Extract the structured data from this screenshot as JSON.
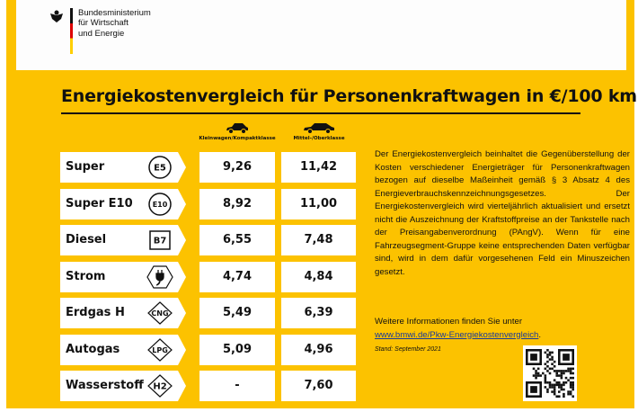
{
  "header": {
    "ministry_lines": [
      "Bundesministerium",
      "für Wirtschaft",
      "und Energie"
    ]
  },
  "title": "Energiekostenvergleich für Personenkraftwagen in €/100 km",
  "columns": [
    "Kleinwagen/Kompaktklasse",
    "Mittel-/Oberklasse"
  ],
  "rows": [
    {
      "fuel": "Super",
      "badge": "E5",
      "badge_shape": "circle",
      "small": "9,26",
      "large": "11,42"
    },
    {
      "fuel": "Super E10",
      "badge": "E10",
      "badge_shape": "circle",
      "small": "8,92",
      "large": "11,00"
    },
    {
      "fuel": "Diesel",
      "badge": "B7",
      "badge_shape": "square",
      "small": "6,55",
      "large": "7,48"
    },
    {
      "fuel": "Strom",
      "badge": "",
      "badge_shape": "hexagon-plug",
      "small": "4,74",
      "large": "4,84"
    },
    {
      "fuel": "Erdgas H",
      "badge": "CNG",
      "badge_shape": "diamond",
      "small": "5,49",
      "large": "6,39"
    },
    {
      "fuel": "Autogas",
      "badge": "LPG",
      "badge_shape": "diamond",
      "small": "5,09",
      "large": "4,96"
    },
    {
      "fuel": "Wasserstoff",
      "badge": "H2",
      "badge_shape": "diamond",
      "small": "-",
      "large": "7,60"
    }
  ],
  "description": "Der Energiekostenvergleich beinhaltet die Gegenüberstellung der Kosten verschiedener Energieträger für Personenkraftwagen bezogen auf dieselbe Maßeinheit gemäß § 3 Absatz 4 des Energieverbrauchskennzeichnungsgesetzes. Der Energiekostenvergleich wird vierteljährlich aktualisiert und ersetzt nicht die Auszeichnung der Kraftstoffpreise an der Tankstelle nach der Preisangabenverordnung (PAngV). Wenn für eine Fahrzeugsegment-Gruppe keine entsprechenden Daten verfügbar sind, wird in dem dafür vorgesehenen Feld ein Minuszeichen gesetzt.",
  "more_info": "Weitere Informationen finden Sie unter",
  "link": "www.bmwi.de/Pkw-Energiekostenvergleich",
  "stand": "Stand: September 2021",
  "colors": {
    "background": "#fcc200",
    "link": "#1a3a9a"
  }
}
